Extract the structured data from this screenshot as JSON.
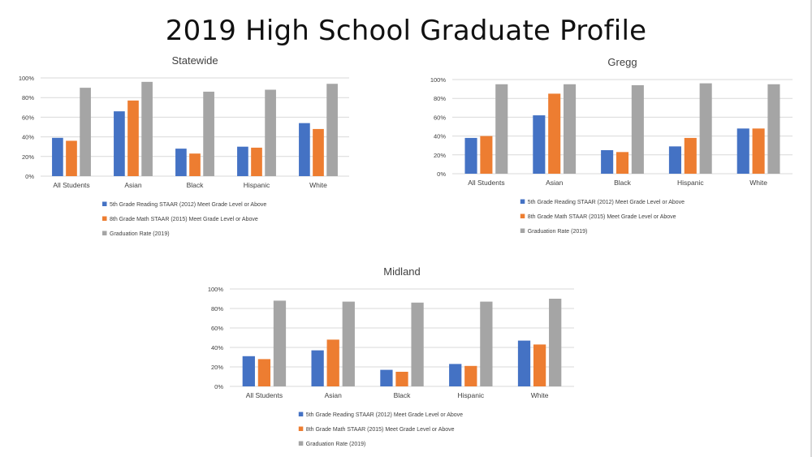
{
  "page": {
    "title": "2019 High School Graduate Profile"
  },
  "colors": {
    "reading": "#4472c4",
    "math": "#ed7d31",
    "graduation": "#a5a5a5",
    "grid": "#d9d9d9",
    "text": "#404040"
  },
  "chart_data": [
    {
      "type": "bar",
      "title": "Statewide",
      "categories": [
        "All Students",
        "Asian",
        "Black",
        "Hispanic",
        "White"
      ],
      "ylim": [
        0,
        100
      ],
      "yticks": [
        "0%",
        "20%",
        "40%",
        "60%",
        "80%",
        "100%"
      ],
      "series": [
        {
          "name": "5th Grade Reading STAAR (2012) Meet Grade Level or Above",
          "values": [
            39,
            66,
            28,
            30,
            54
          ]
        },
        {
          "name": "8th Grade Math STAAR (2015) Meet Grade Level or Above",
          "values": [
            36,
            77,
            23,
            29,
            48
          ]
        },
        {
          "name": "Graduation Rate (2019)",
          "values": [
            90,
            96,
            86,
            88,
            94
          ]
        }
      ],
      "legend": "bottom"
    },
    {
      "type": "bar",
      "title": "Gregg",
      "categories": [
        "All Students",
        "Asian",
        "Black",
        "Hispanic",
        "White"
      ],
      "ylim": [
        0,
        100
      ],
      "yticks": [
        "0%",
        "20%",
        "40%",
        "60%",
        "80%",
        "100%"
      ],
      "series": [
        {
          "name": "5th Grade Reading STAAR (2012) Meet Grade Level or Above",
          "values": [
            38,
            62,
            25,
            29,
            48
          ]
        },
        {
          "name": "8th Grade Math STAAR (2015) Meet Grade Level or Above",
          "values": [
            40,
            85,
            23,
            38,
            48
          ]
        },
        {
          "name": "Graduation Rate (2019)",
          "values": [
            95,
            95,
            94,
            96,
            95
          ]
        }
      ],
      "legend": "bottom"
    },
    {
      "type": "bar",
      "title": "Midland",
      "categories": [
        "All Students",
        "Asian",
        "Black",
        "Hispanic",
        "White"
      ],
      "ylim": [
        0,
        100
      ],
      "yticks": [
        "0%",
        "20%",
        "40%",
        "60%",
        "80%",
        "100%"
      ],
      "series": [
        {
          "name": "5th Grade Reading STAAR (2012) Meet Grade Level or Above",
          "values": [
            31,
            37,
            17,
            23,
            47
          ]
        },
        {
          "name": "8th Grade Math STAAR (2015) Meet Grade Level or Above",
          "values": [
            28,
            48,
            15,
            21,
            43
          ]
        },
        {
          "name": "Graduation Rate (2019)",
          "values": [
            88,
            87,
            86,
            87,
            90
          ]
        }
      ],
      "legend": "bottom"
    }
  ]
}
